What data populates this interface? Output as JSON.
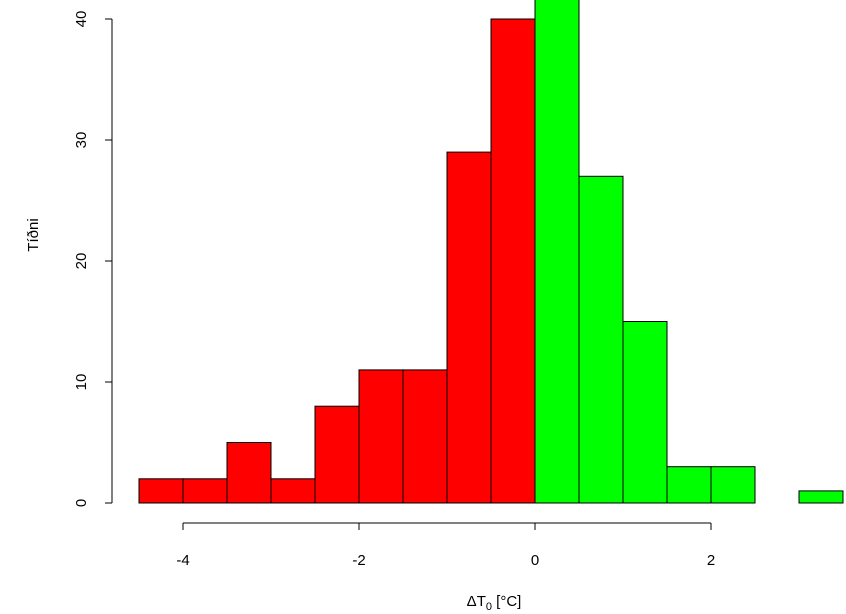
{
  "chart_data": {
    "type": "bar",
    "title": "",
    "xlabel_prefix": "ΔT",
    "xlabel_sub": "0",
    "xlabel_suffix": " [°C]",
    "ylabel": "Tíðni",
    "bin_width": 0.5,
    "bins": [
      {
        "x0": -4.5,
        "x1": -4.0,
        "count": 2
      },
      {
        "x0": -4.0,
        "x1": -3.5,
        "count": 2
      },
      {
        "x0": -3.5,
        "x1": -3.0,
        "count": 5
      },
      {
        "x0": -3.0,
        "x1": -2.5,
        "count": 2
      },
      {
        "x0": -2.5,
        "x1": -2.0,
        "count": 8
      },
      {
        "x0": -2.0,
        "x1": -1.5,
        "count": 11
      },
      {
        "x0": -1.5,
        "x1": -1.0,
        "count": 11
      },
      {
        "x0": -1.0,
        "x1": -0.5,
        "count": 29
      },
      {
        "x0": -0.5,
        "x1": 0.0,
        "count": 40
      },
      {
        "x0": 0.0,
        "x1": 0.5,
        "count": 42
      },
      {
        "x0": 0.5,
        "x1": 1.0,
        "count": 27
      },
      {
        "x0": 1.0,
        "x1": 1.5,
        "count": 15
      },
      {
        "x0": 1.5,
        "x1": 2.0,
        "count": 3
      },
      {
        "x0": 2.0,
        "x1": 2.5,
        "count": 3
      },
      {
        "x0": 2.5,
        "x1": 3.0,
        "count": 0
      },
      {
        "x0": 3.0,
        "x1": 3.5,
        "count": 1
      }
    ],
    "colors": {
      "negative": "#ff0000",
      "positive": "#00ff00",
      "stroke": "#000000"
    },
    "x_ticks": [
      -4,
      -2,
      0,
      2
    ],
    "x_tick_labels": [
      "-4",
      "-2",
      "0",
      "2"
    ],
    "y_ticks": [
      0,
      10,
      20,
      30,
      40
    ],
    "y_tick_labels": [
      "0",
      "10",
      "20",
      "30",
      "40"
    ],
    "xlim": [
      -4.5,
      3.5
    ],
    "ylim": [
      0,
      42
    ]
  }
}
